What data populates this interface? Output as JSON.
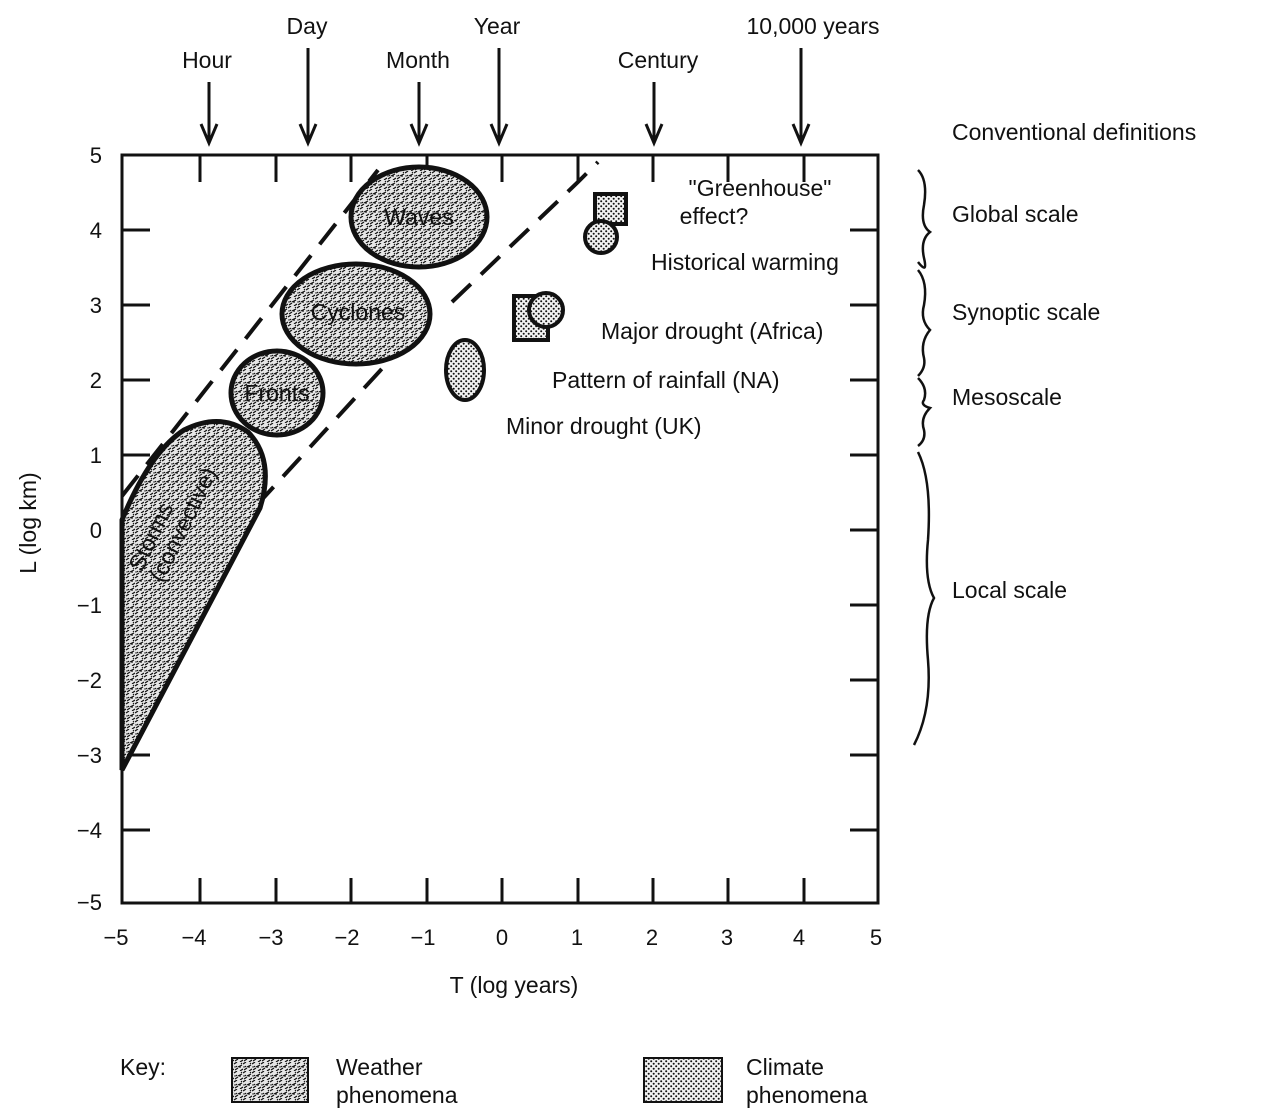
{
  "x_axis": {
    "label": "T (log years)",
    "min": -5,
    "max": 5,
    "ticks": [
      "−5",
      "−4",
      "−3",
      "−2",
      "−1",
      "0",
      "1",
      "2",
      "3",
      "4",
      "5"
    ]
  },
  "y_axis": {
    "label": "L (log km)",
    "min": -5,
    "max": 5,
    "ticks": [
      "5",
      "4",
      "3",
      "2",
      "1",
      "0",
      "−1",
      "−2",
      "−3",
      "−4",
      "−5"
    ]
  },
  "time_markers": [
    {
      "label": "Hour",
      "t": -3.94
    },
    {
      "label": "Day",
      "t": -2.56
    },
    {
      "label": "Month",
      "t": -1.08
    },
    {
      "label": "Year",
      "t": 0
    },
    {
      "label": "Century",
      "t": 2
    },
    {
      "label": "10,000 years",
      "t": 4
    }
  ],
  "conventional_definitions": "Conventional definitions",
  "scale_definitions": [
    {
      "label": "Global scale",
      "l_top": 4.8,
      "l_bottom": 3.7
    },
    {
      "label": "Synoptic scale",
      "l_top": 3.5,
      "l_bottom": 2.6
    },
    {
      "label": "Mesoscale",
      "l_top": 2.6,
      "l_bottom": 1.1
    },
    {
      "label": "Local scale",
      "l_top": 1.0,
      "l_bottom": -2.9
    }
  ],
  "weather_phenomena": [
    {
      "label": "Waves",
      "t": -1.75,
      "l": 4.1
    },
    {
      "label": "Cyclones",
      "t": -2.2,
      "l": 2.85
    },
    {
      "label": "Fronts",
      "t": -3.1,
      "l": 1.85
    },
    {
      "label": "Storms",
      "label2": "(convective)"
    }
  ],
  "climate_phenomena": [
    {
      "label": "\"Greenhouse\"",
      "label2": "effect?",
      "t": 1.45,
      "l": 4.2
    },
    {
      "label": "Historical warming",
      "t": 1.3,
      "l": 3.9
    },
    {
      "label": "Major drought (Africa)",
      "t": 0.4,
      "l": 2.85
    },
    {
      "label": "Pattern of rainfall (NA)",
      "t": -0.5,
      "l": 2.1
    },
    {
      "label": "Minor drought (UK)"
    }
  ],
  "key": {
    "title": "Key:",
    "weather_line1": "Weather",
    "weather_line2": "phenomena",
    "climate_line1": "Climate",
    "climate_line2": "phenomena"
  }
}
